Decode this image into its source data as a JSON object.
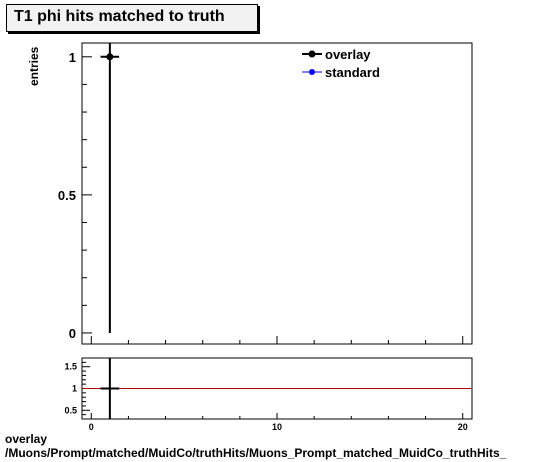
{
  "title": "T1 phi hits matched to truth",
  "chart_data": [
    {
      "type": "scatter",
      "ylabel": "entries",
      "xlim": [
        -0.5,
        20.5
      ],
      "ylim": [
        -0.04,
        1.05
      ],
      "yticks": [
        0,
        0.5,
        1
      ],
      "ytick_labels": [
        "0",
        "0.5",
        "1"
      ],
      "legend_position": "top-right",
      "series": [
        {
          "name": "overlay",
          "color": "#000000",
          "points": [
            {
              "x": 1,
              "y": 1,
              "yerr": 1
            }
          ]
        },
        {
          "name": "standard",
          "color": "#0000ff",
          "points": []
        }
      ]
    },
    {
      "type": "line",
      "xlim": [
        -0.5,
        20.5
      ],
      "ylim": [
        0.3,
        1.7
      ],
      "yticks": [
        0.5,
        1,
        1.5
      ],
      "ytick_labels": [
        "0.5",
        "1",
        "1.5"
      ],
      "xticks": [
        0,
        10,
        20
      ],
      "xtick_labels": [
        "0",
        "10",
        "20"
      ],
      "reference_line": {
        "y": 1,
        "color": "#aa0000"
      },
      "series": [
        {
          "color": "#000000",
          "points": [
            {
              "x": 1,
              "y": 1
            }
          ]
        }
      ]
    }
  ],
  "footer": {
    "line1": "overlay",
    "line2": "/Muons/Prompt/matched/MuidCo/truthHits/Muons_Prompt_matched_MuidCo_truthHits_"
  }
}
